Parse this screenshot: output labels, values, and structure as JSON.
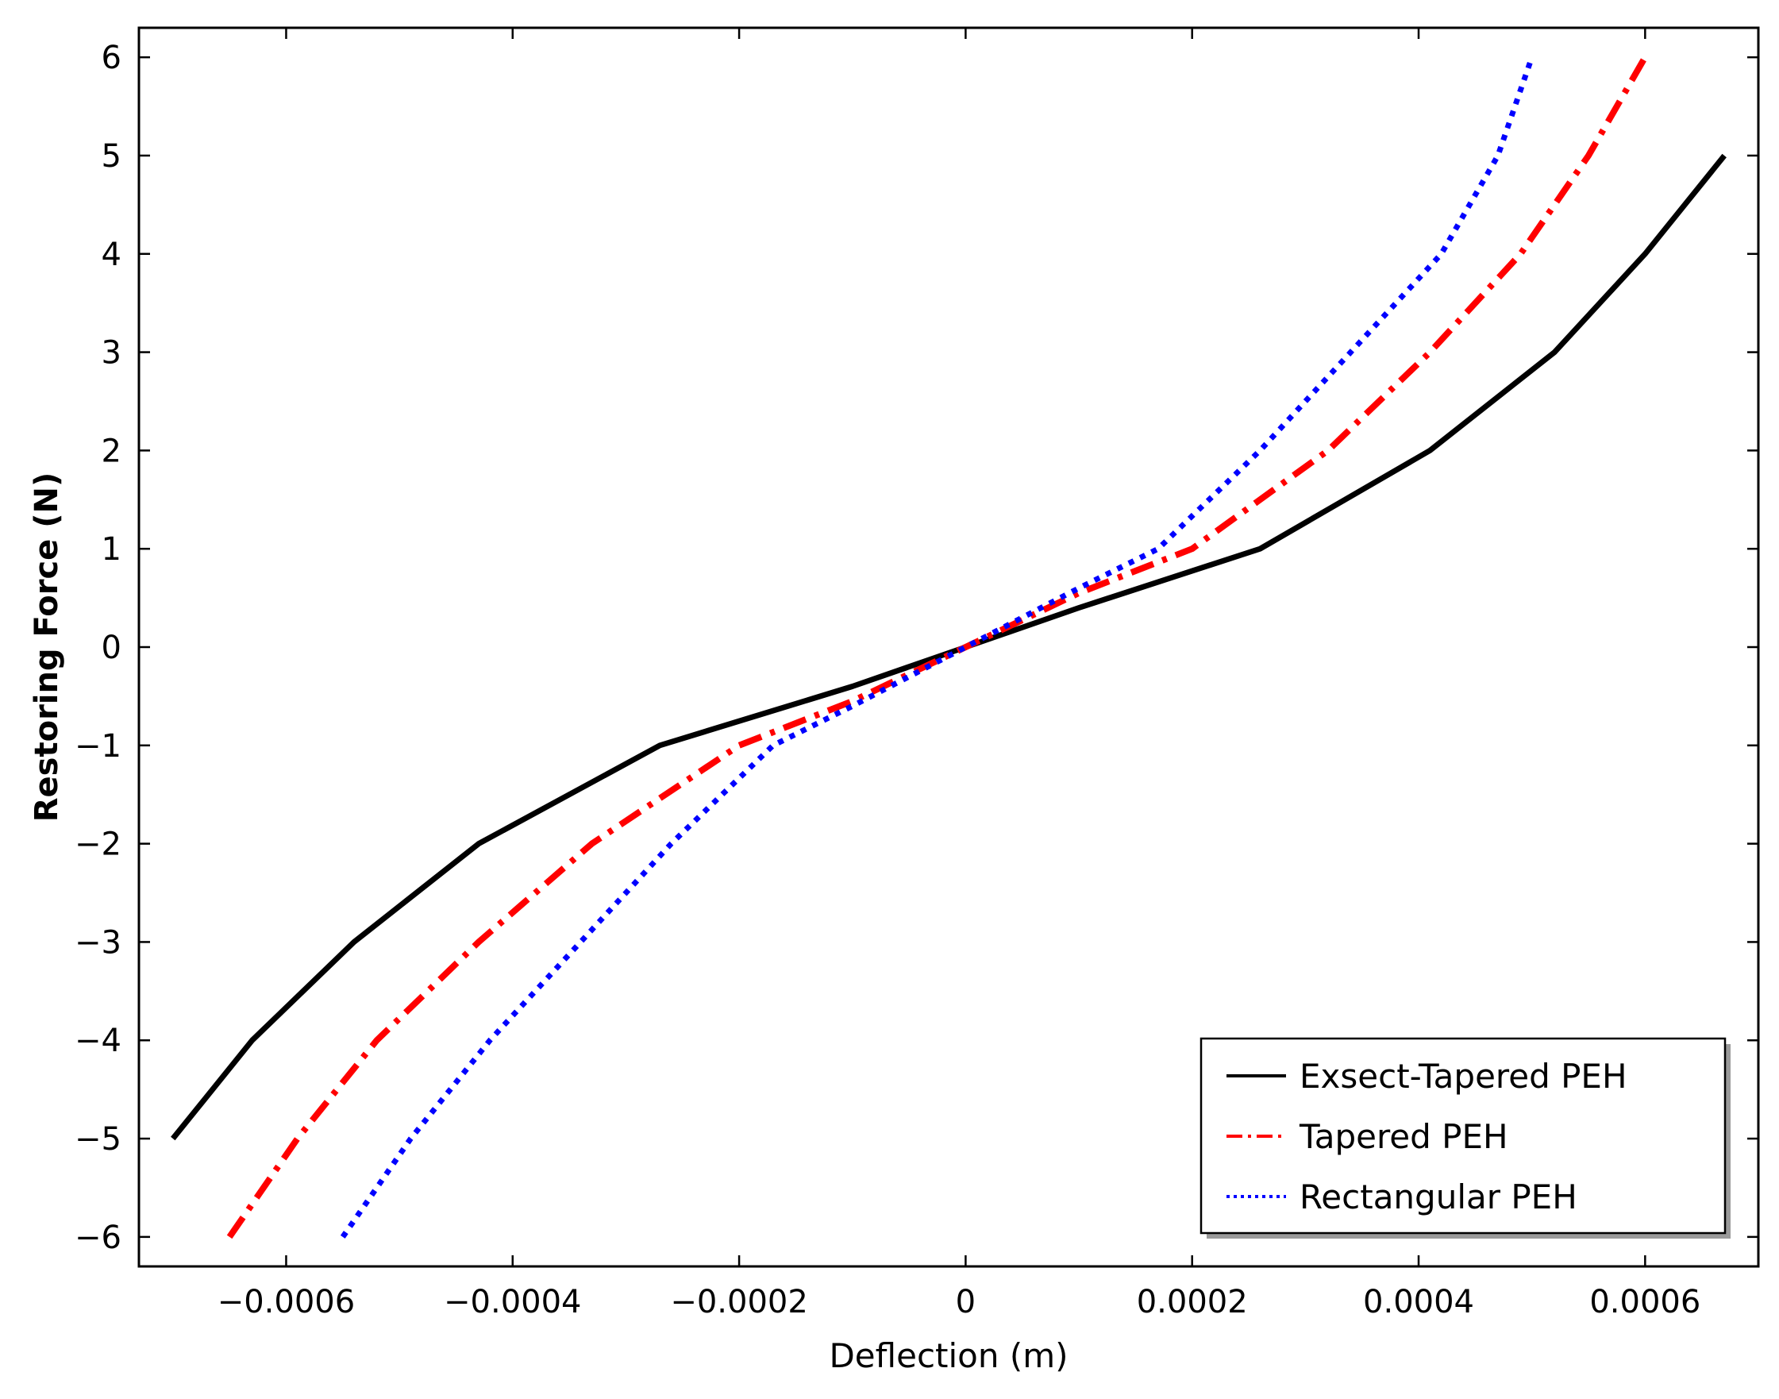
{
  "chart_data": {
    "type": "line",
    "title": "",
    "xlabel": "Deflection (m)",
    "ylabel": "Restoring Force (N)",
    "xlim": [
      -0.00073,
      0.0007
    ],
    "ylim": [
      -6.3,
      6.3
    ],
    "xticks": [
      -0.0006,
      -0.0004,
      -0.0002,
      0,
      0.0002,
      0.0004,
      0.0006
    ],
    "xtick_labels": [
      "−0.0006",
      "−0.0004",
      "−0.0002",
      "0",
      "0.0002",
      "0.0004",
      "0.0006"
    ],
    "yticks": [
      -6,
      -5,
      -4,
      -3,
      -2,
      -1,
      0,
      1,
      2,
      3,
      4,
      5,
      6
    ],
    "ytick_labels": [
      "−6",
      "−5",
      "−4",
      "−3",
      "−2",
      "−1",
      "0",
      "1",
      "2",
      "3",
      "4",
      "5",
      "6"
    ],
    "grid": false,
    "legend_position": "bottom-right",
    "series": [
      {
        "name": "Exsect-Tapered PEH",
        "color": "#000000",
        "style": "solid",
        "x": [
          -0.0007,
          -0.00063,
          -0.00054,
          -0.00043,
          -0.00027,
          -0.0001,
          0,
          0.0001,
          0.00026,
          0.00041,
          0.00052,
          0.0006,
          0.00067
        ],
        "y": [
          -5,
          -4,
          -3,
          -2,
          -1,
          -0.4,
          0,
          0.4,
          1,
          2,
          3,
          4,
          5
        ]
      },
      {
        "name": "Tapered PEH",
        "color": "#ff0000",
        "style": "dashdot",
        "x": [
          -0.00065,
          -0.00059,
          -0.00052,
          -0.00043,
          -0.00033,
          -0.0002,
          -0.0001,
          0,
          0.0001,
          0.0002,
          0.00032,
          0.00041,
          0.00049,
          0.00055,
          0.0006
        ],
        "y": [
          -6,
          -5,
          -4,
          -3,
          -2,
          -1,
          -0.55,
          0,
          0.55,
          1,
          2,
          3,
          4,
          5,
          6
        ]
      },
      {
        "name": "Rectangular PEH",
        "color": "#0000ff",
        "style": "dotted",
        "x": [
          -0.00055,
          -0.00049,
          -0.00042,
          -0.00034,
          -0.00026,
          -0.00017,
          -0.0001,
          0,
          0.0001,
          0.00017,
          0.00026,
          0.00034,
          0.00042,
          0.00047,
          0.0005
        ],
        "y": [
          -6,
          -5,
          -4,
          -3,
          -2,
          -1,
          -0.6,
          0,
          0.6,
          1,
          2,
          3,
          4,
          5,
          6
        ]
      }
    ]
  }
}
